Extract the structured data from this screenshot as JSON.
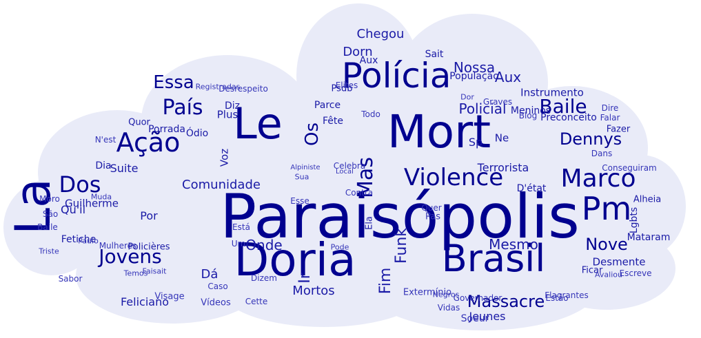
{
  "colors": {
    "background": "#ffffff",
    "cloud": "#e9ebf8",
    "word_dark": "#00008f",
    "word_mid": "#1a1aa6",
    "word_light": "#3535b8"
  },
  "words": [
    "Paraisópolis",
    "Mort",
    "Doria",
    "Brasil",
    "Le",
    "La",
    "Polícia",
    "Violence",
    "Ação",
    "País",
    "Essa",
    "Baile",
    "Marco",
    "Pm",
    "Dennys",
    "Jovens",
    "Dos",
    "Mas",
    "Os",
    "Massacre",
    "Nove",
    "Mesmo",
    "Policial",
    "Funk",
    "Fim",
    "Onde",
    "Comunidade",
    "Nossa",
    "Chegou",
    "Dorn",
    "Aux",
    "Feliciano",
    "Suite",
    "Dia",
    "Guilherme",
    "Policières",
    "Fetiche",
    "Qu'il",
    "Por",
    "Porrada",
    "Ódio",
    "Quor",
    "Voz",
    "Plus",
    "Diz",
    "Parce",
    "Fête",
    "Sp",
    "Ne",
    "Terrorista",
    "Alpiniste",
    "Celebra",
    "Sua",
    "Pode",
    "Ir",
    "Dá",
    "Caso",
    "Visage",
    "Vídeos",
    "Cette",
    "Mortos",
    "Extermínio",
    "Jeunes",
    "Soeur",
    "Vidas",
    "Negros",
    "Governador",
    "Estão",
    "Flagrantes",
    "Ficar",
    "Desmente",
    "Mataram",
    "Alheia",
    "Lgbts",
    "Dans",
    "Conseguiram",
    "D'état",
    "Preconceito",
    "Meninos",
    "Dire",
    "Fazer",
    "Falar",
    "Blog",
    "Graves",
    "Dor",
    "Instrumento",
    "População",
    "Sait",
    "Aux",
    "Elites",
    "Psdb",
    "Desrespeito",
    "Registradas",
    "Todo",
    "Contra",
    "Ela",
    "Pas",
    "Quer",
    "Esse",
    "Um",
    "Está",
    "Dizem",
    "Faisait",
    "Avaliou",
    "Escreve",
    "Muda",
    "Temos",
    "Sabor",
    "Baile",
    "São",
    "Moro",
    "N'est",
    "Paulo",
    "Triste",
    "Mulheres",
    "Local"
  ]
}
